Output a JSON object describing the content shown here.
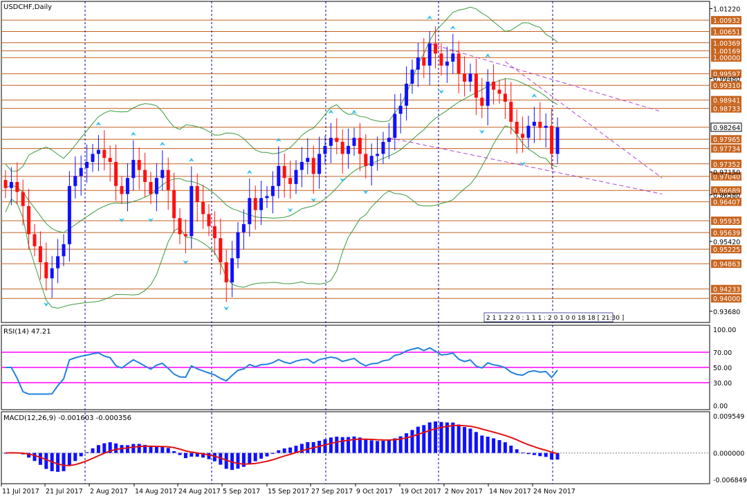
{
  "window_title": "USDCHF,Daily",
  "colors": {
    "bull": "#1010ff",
    "bear": "#ff1010",
    "bollinger": "#3a9a3a",
    "level_line": "#c06020",
    "level_label_bg": "#c8641e",
    "channel": "#b040d0",
    "rsi_line": "#2080e0",
    "rsi_levels": "#ff00ff",
    "macd_hist": "#1010ff",
    "macd_signal": "#e01010",
    "grid_sep": "#0000a0",
    "arrow": "#30c0f0"
  },
  "chart_data": [
    {
      "type": "candlestick",
      "name": "price",
      "symbol": "USDCHF",
      "timeframe": "Daily",
      "ylim": [
        0.934,
        1.014
      ],
      "y_ticks": [
        "1.01220",
        "0.99480",
        "0.97150",
        "0.96580",
        "0.95420",
        "0.93680"
      ],
      "level_labels": [
        "1.00932",
        "1.00651",
        "1.00369",
        "1.00169",
        "1.00000",
        "0.99597",
        "0.99310",
        "0.98941",
        "0.98733",
        "0.98264",
        "0.97965",
        "0.97734",
        "0.97352",
        "0.97040",
        "0.96689",
        "0.96407",
        "0.95935",
        "0.95639",
        "0.95225",
        "0.94863",
        "0.94233",
        "0.94000"
      ],
      "current_price": "0.98264",
      "x_labels": [
        "11 Jul 2017",
        "21 Jul 2017",
        "2 Aug 2017",
        "14 Aug 2017",
        "24 Aug 2017",
        "5 Sep 2017",
        "15 Sep 2017",
        "27 Sep 2017",
        "9 Oct 2017",
        "19 Oct 2017",
        "2 Nov 2017",
        "14 Nov 2017",
        "24 Nov 2017"
      ],
      "closes": [
        0.9675,
        0.969,
        0.9665,
        0.963,
        0.956,
        0.953,
        0.949,
        0.945,
        0.9475,
        0.9505,
        0.9535,
        0.968,
        0.9705,
        0.9725,
        0.974,
        0.976,
        0.977,
        0.975,
        0.974,
        0.968,
        0.966,
        0.97,
        0.9745,
        0.972,
        0.969,
        0.966,
        0.97,
        0.972,
        0.967,
        0.96,
        0.956,
        0.9555,
        0.968,
        0.964,
        0.961,
        0.958,
        0.955,
        0.949,
        0.944,
        0.95,
        0.9565,
        0.9585,
        0.965,
        0.962,
        0.965,
        0.9655,
        0.968,
        0.973,
        0.97,
        0.9685,
        0.972,
        0.974,
        0.975,
        0.971,
        0.976,
        0.978,
        0.98,
        0.979,
        0.976,
        0.978,
        0.98,
        0.976,
        0.973,
        0.9755,
        0.976,
        0.979,
        0.98,
        0.986,
        0.988,
        0.9935,
        0.997,
        1.0,
        0.998,
        1.0035,
        1.001,
        0.998,
        0.999,
        1.001,
        0.996,
        0.994,
        0.996,
        0.99,
        0.988,
        0.994,
        0.992,
        0.991,
        0.989,
        0.984,
        0.981,
        0.98,
        0.983,
        0.984,
        0.9825,
        0.983,
        0.976,
        0.9826
      ],
      "rsi": {
        "label": "RSI(14) 47.21",
        "levels": [
          "70.00",
          "50.00",
          "30.00"
        ],
        "scale": [
          "100.00",
          "70.00",
          "50.00",
          "30.00",
          "0.00"
        ]
      },
      "macd": {
        "label": "MACD(12,26,9) -0.001603 -0.000356",
        "scale": [
          "0.009549",
          "0.000000",
          "-0.006849"
        ]
      },
      "timebar": "2 1 1 2 2 0 : 1 1 1 : 2 0 1 0 0 18 18 [ 21:30 ]"
    }
  ]
}
